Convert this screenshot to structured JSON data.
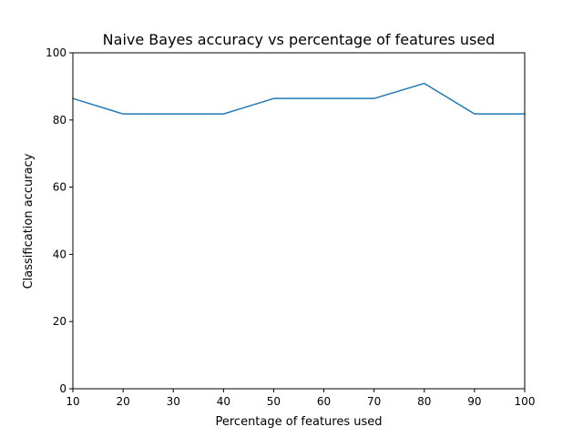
{
  "chart_data": {
    "type": "line",
    "title": "Naive Bayes accuracy vs percentage of features used",
    "xlabel": "Percentage of features used",
    "ylabel": "Classification accuracy",
    "xlim": [
      10,
      100
    ],
    "ylim": [
      0,
      100
    ],
    "xticks": [
      10,
      20,
      30,
      40,
      50,
      60,
      70,
      80,
      90,
      100
    ],
    "yticks": [
      0,
      20,
      40,
      60,
      80,
      100
    ],
    "grid": false,
    "series": [
      {
        "color": "#1f77b4",
        "x": [
          10,
          20,
          30,
          40,
          50,
          60,
          70,
          80,
          90,
          100
        ],
        "y": [
          86.4,
          81.8,
          81.8,
          81.8,
          86.4,
          86.4,
          86.4,
          90.9,
          81.8,
          81.8
        ]
      }
    ]
  }
}
